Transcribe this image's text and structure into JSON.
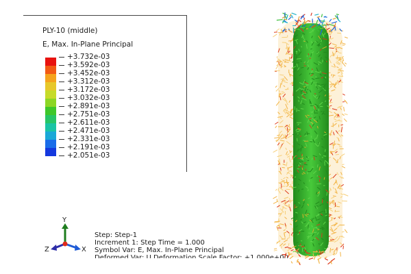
{
  "legend": {
    "title": "PLY-10 (middle)",
    "variable": "E, Max. In-Plane Principal",
    "labels": [
      "+3.732e-03",
      "+3.592e-03",
      "+3.452e-03",
      "+3.312e-03",
      "+3.172e-03",
      "+3.032e-03",
      "+2.891e-03",
      "+2.751e-03",
      "+2.611e-03",
      "+2.471e-03",
      "+2.331e-03",
      "+2.191e-03",
      "+2.051e-03"
    ],
    "colors": [
      "#e8120f",
      "#f25a14",
      "#f5a31c",
      "#e7c82a",
      "#c6db29",
      "#8cd624",
      "#3ec72a",
      "#27c566",
      "#1ac4a5",
      "#1aa8d7",
      "#1a6de9",
      "#1438de"
    ]
  },
  "triad": {
    "y_label": "Y",
    "z_label": "Z",
    "x_label": "X"
  },
  "step_info": {
    "step": "Step: Step-1",
    "increment": "Increment     1: Step Time =    1.000",
    "symbol_var": "Symbol Var: E, Max. In-Plane Principal",
    "deformed_var": "Deformed Var: U  Deformation Scale Factor: +1.000e+00"
  },
  "model": {
    "core_color": "#36b82a",
    "core_dark": "#218a1c",
    "halo_color": "#f2b445",
    "halo_red": "#dd3a1c",
    "cap_blue": "#2266dd"
  }
}
